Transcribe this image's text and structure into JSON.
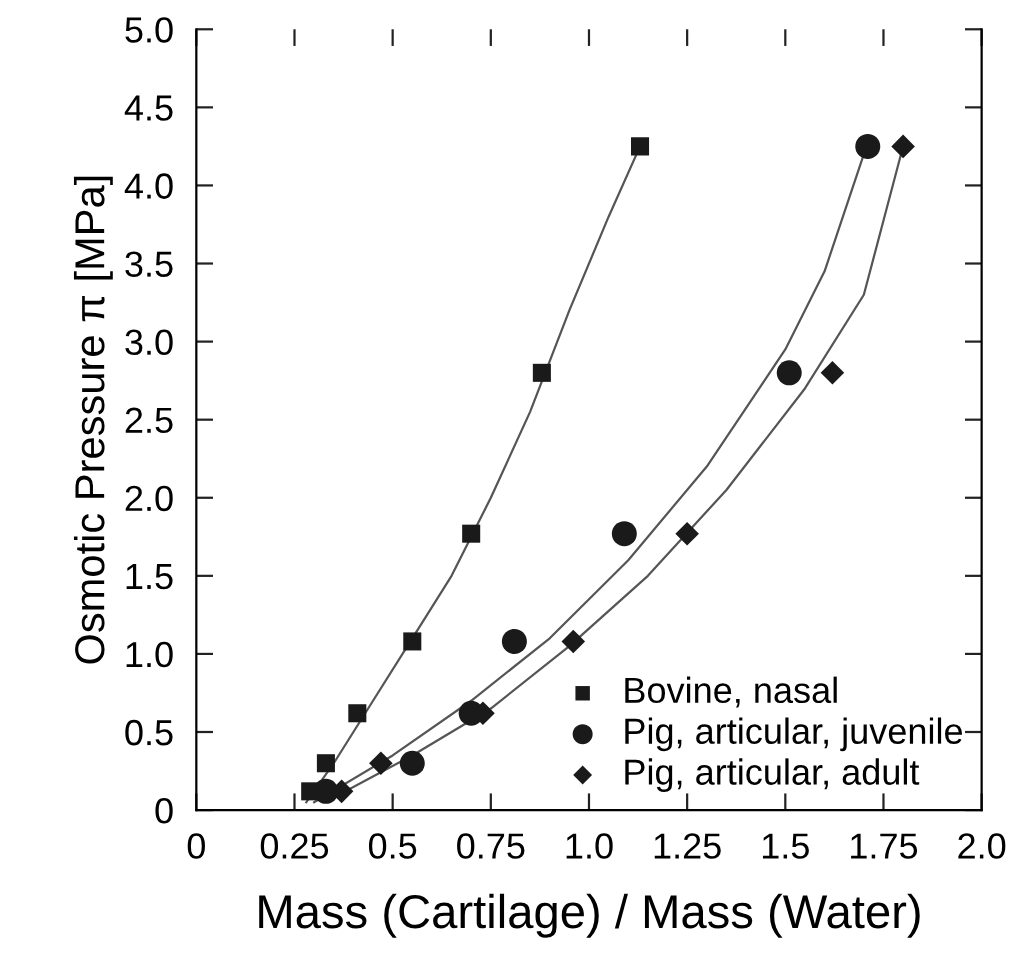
{
  "chart_data": {
    "type": "scatter",
    "xlabel": "Mass (Cartilage) / Mass (Water)",
    "ylabel": "Osmotic Pressure π [MPa]",
    "xlim": [
      0,
      2.0
    ],
    "xticks": [
      0,
      0.25,
      0.5,
      0.75,
      {
        "value": 1.0,
        "label": "1.0"
      },
      1.25,
      1.5,
      1.75,
      {
        "value": 2.0,
        "label": "2.0"
      }
    ],
    "ylim": [
      0,
      5.0
    ],
    "yticks": [
      0,
      0.5,
      {
        "value": 1.0,
        "label": "1.0"
      },
      1.5,
      {
        "value": 2.0,
        "label": "2.0"
      },
      2.5,
      {
        "value": 3.0,
        "label": "3.0"
      },
      3.5,
      {
        "value": 4.0,
        "label": "4.0"
      },
      4.5,
      {
        "value": 5.0,
        "label": "5.0"
      }
    ],
    "grid": false,
    "legend": "bottom right",
    "series": [
      {
        "name": "Bovine, nasal",
        "color": "#1a1a1a",
        "marker": "square",
        "x": [
          0.29,
          0.33,
          0.41,
          0.55,
          0.7,
          0.88,
          1.13
        ],
        "values": [
          0.12,
          0.3,
          0.62,
          1.08,
          1.77,
          2.8,
          4.25
        ]
      },
      {
        "name": "Pig, articular, juvenile",
        "color": "#1a1a1a",
        "marker": "circle",
        "x": [
          0.33,
          0.55,
          0.7,
          0.81,
          1.09,
          1.51,
          1.71
        ],
        "values": [
          0.12,
          0.3,
          0.62,
          1.08,
          1.77,
          2.8,
          4.25
        ]
      },
      {
        "name": "Pig, articular, adult",
        "color": "#1a1a1a",
        "marker": "diamond",
        "x": [
          0.37,
          0.47,
          0.73,
          0.96,
          1.25,
          1.62,
          1.8
        ],
        "values": [
          0.12,
          0.3,
          0.62,
          1.08,
          1.77,
          2.8,
          4.25
        ]
      },
      {
        "type": "line",
        "color": "#555555",
        "marker": "none",
        "x": [
          0.28,
          0.35,
          0.45,
          0.55,
          0.65,
          0.75,
          0.85,
          0.95,
          1.05,
          1.13
        ],
        "values": [
          0.05,
          0.3,
          0.7,
          1.1,
          1.5,
          2.0,
          2.55,
          3.2,
          3.8,
          4.25
        ]
      },
      {
        "type": "line",
        "color": "#555555",
        "marker": "none",
        "x": [
          0.3,
          0.5,
          0.7,
          0.9,
          1.1,
          1.3,
          1.5,
          1.6,
          1.7
        ],
        "values": [
          0.05,
          0.35,
          0.7,
          1.1,
          1.6,
          2.2,
          2.95,
          3.45,
          4.2
        ]
      },
      {
        "type": "line",
        "color": "#555555",
        "marker": "none",
        "x": [
          0.35,
          0.55,
          0.75,
          0.95,
          1.15,
          1.35,
          1.55,
          1.7,
          1.8
        ],
        "values": [
          0.08,
          0.35,
          0.65,
          1.05,
          1.5,
          2.05,
          2.7,
          3.3,
          4.25
        ]
      }
    ]
  }
}
